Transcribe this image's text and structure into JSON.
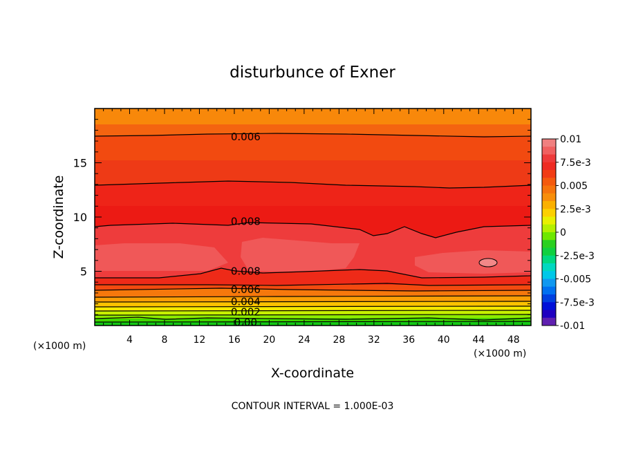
{
  "chart_data": {
    "type": "contour",
    "title": "disturbunce of Exner",
    "xlabel": "X-coordinate",
    "ylabel": "Z-coordinate",
    "x_unit_left": "(×1000 m)",
    "x_unit_right": "(×1000 m)",
    "footer": "CONTOUR INTERVAL = 1.000E-03",
    "xlim": [
      0,
      50
    ],
    "ylim": [
      0,
      20
    ],
    "xticks": [
      4,
      8,
      12,
      16,
      20,
      24,
      28,
      32,
      36,
      40,
      44,
      48
    ],
    "yticks": [
      5,
      10,
      15
    ],
    "colorbar": {
      "range": [
        -0.01,
        0.01
      ],
      "labels": [
        {
          "value": 0.01,
          "text": "0.01"
        },
        {
          "value": 0.0075,
          "text": "7.5e-3"
        },
        {
          "value": 0.005,
          "text": "0.005"
        },
        {
          "value": 0.0025,
          "text": "2.5e-3"
        },
        {
          "value": 0,
          "text": "0"
        },
        {
          "value": -0.0025,
          "text": "-2.5e-3"
        },
        {
          "value": -0.005,
          "text": "-0.005"
        },
        {
          "value": -0.0075,
          "text": "-7.5e-3"
        },
        {
          "value": -0.01,
          "text": "-0.01"
        }
      ],
      "colors": [
        "#f08080",
        "#f06060",
        "#ee3a3a",
        "#ee2a22",
        "#f23c14",
        "#f45a0e",
        "#f6740c",
        "#f88e0a",
        "#fbb000",
        "#fcd000",
        "#e8f000",
        "#b4f000",
        "#6ee800",
        "#2ad020",
        "#10d040",
        "#00d880",
        "#00d8c0",
        "#00c8e8",
        "#1098f0",
        "#0070f0",
        "#0040e0",
        "#0010d8",
        "#2000c0",
        "#6020b0"
      ]
    },
    "contour_labels": [
      {
        "text": "0.006",
        "x": 17.3,
        "z": 17.4
      },
      {
        "text": "0.008",
        "x": 17.3,
        "z": 9.6
      },
      {
        "text": "0.008",
        "x": 17.3,
        "z": 5.0
      },
      {
        "text": "0.006",
        "x": 17.3,
        "z": 3.3
      },
      {
        "text": "0.004",
        "x": 17.3,
        "z": 2.2
      },
      {
        "text": "0.002",
        "x": 17.3,
        "z": 1.25
      },
      {
        "text": "0.00",
        "x": 17.3,
        "z": 0.3
      }
    ]
  }
}
